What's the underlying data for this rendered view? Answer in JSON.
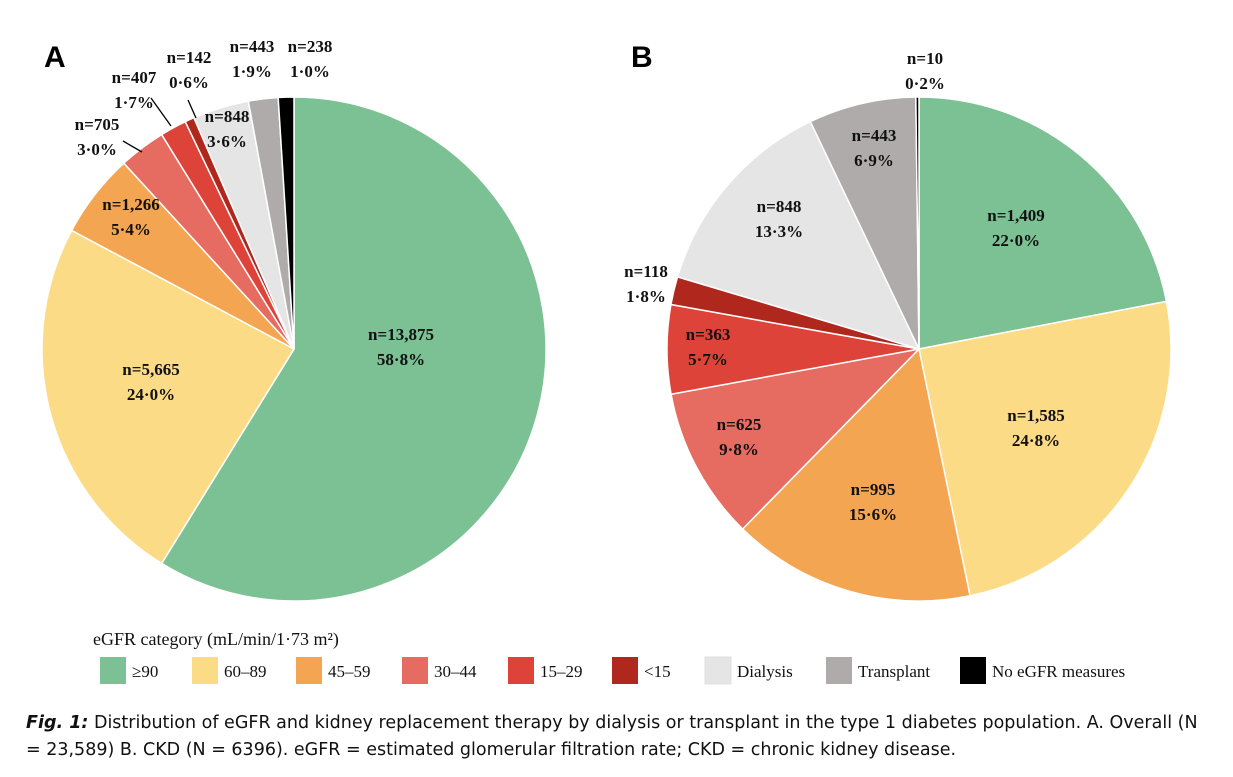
{
  "caption": {
    "label": "Fig. 1:",
    "text": " Distribution of eGFR and kidney replacement therapy by dialysis or transplant in the type 1 diabetes population. A. Overall (N = 23,589) B. CKD (N = 6396). eGFR = estimated glomerular filtration rate; CKD = chronic kidney disease."
  },
  "legend": {
    "title": "eGFR category (mL/min/1·73 m²)",
    "entries": [
      {
        "label": "≥90",
        "color": "#7cc194"
      },
      {
        "label": "60–89",
        "color": "#fbdb85"
      },
      {
        "label": "45–59",
        "color": "#f3a552"
      },
      {
        "label": "30–44",
        "color": "#e66b61"
      },
      {
        "label": "15–29",
        "color": "#dd4338"
      },
      {
        "label": "<15",
        "color": "#b0271e"
      },
      {
        "label": "Dialysis",
        "color": "#e5e5e5"
      },
      {
        "label": "Transplant",
        "color": "#afabab"
      },
      {
        "label": "No eGFR measures",
        "color": "#000000"
      }
    ]
  },
  "chart_data": [
    {
      "type": "pie",
      "panel": "A",
      "slices": [
        {
          "category": "≥90",
          "n": "n=13,875",
          "pct": "58·8%",
          "value": 58.8,
          "color": "#7cc194"
        },
        {
          "category": "60–89",
          "n": "n=5,665",
          "pct": "24·0%",
          "value": 24.0,
          "color": "#fbdb85"
        },
        {
          "category": "45–59",
          "n": "n=1,266",
          "pct": "5·4%",
          "value": 5.4,
          "color": "#f3a552"
        },
        {
          "category": "30–44",
          "n": "n=705",
          "pct": "3·0%",
          "value": 3.0,
          "color": "#e66b61"
        },
        {
          "category": "15–29",
          "n": "n=407",
          "pct": "1·7%",
          "value": 1.7,
          "color": "#dd4338"
        },
        {
          "category": "<15",
          "n": "n=142",
          "pct": "0·6%",
          "value": 0.6,
          "color": "#b0271e"
        },
        {
          "category": "Dialysis",
          "n": "n=848",
          "pct": "3·6%",
          "value": 3.6,
          "color": "#e5e5e5"
        },
        {
          "category": "Transplant",
          "n": "n=443",
          "pct": "1·9%",
          "value": 1.9,
          "color": "#afabab"
        },
        {
          "category": "No eGFR measures",
          "n": "n=238",
          "pct": "1·0%",
          "value": 1.0,
          "color": "#000000"
        }
      ]
    },
    {
      "type": "pie",
      "panel": "B",
      "slices": [
        {
          "category": "≥90",
          "n": "n=1,409",
          "pct": "22·0%",
          "value": 22.0,
          "color": "#7cc194"
        },
        {
          "category": "60–89",
          "n": "n=1,585",
          "pct": "24·8%",
          "value": 24.8,
          "color": "#fbdb85"
        },
        {
          "category": "45–59",
          "n": "n=995",
          "pct": "15·6%",
          "value": 15.6,
          "color": "#f3a552"
        },
        {
          "category": "30–44",
          "n": "n=625",
          "pct": "9·8%",
          "value": 9.8,
          "color": "#e66b61"
        },
        {
          "category": "15–29",
          "n": "n=363",
          "pct": "5·7%",
          "value": 5.7,
          "color": "#dd4338"
        },
        {
          "category": "<15",
          "n": "n=118",
          "pct": "1·8%",
          "value": 1.8,
          "color": "#b0271e"
        },
        {
          "category": "Dialysis",
          "n": "n=848",
          "pct": "13·3%",
          "value": 13.3,
          "color": "#e5e5e5"
        },
        {
          "category": "Transplant",
          "n": "n=443",
          "pct": "6·9%",
          "value": 6.9,
          "color": "#afabab"
        },
        {
          "category": "No eGFR measures",
          "n": "n=10",
          "pct": "0·2%",
          "value": 0.2,
          "color": "#000000"
        }
      ]
    }
  ]
}
